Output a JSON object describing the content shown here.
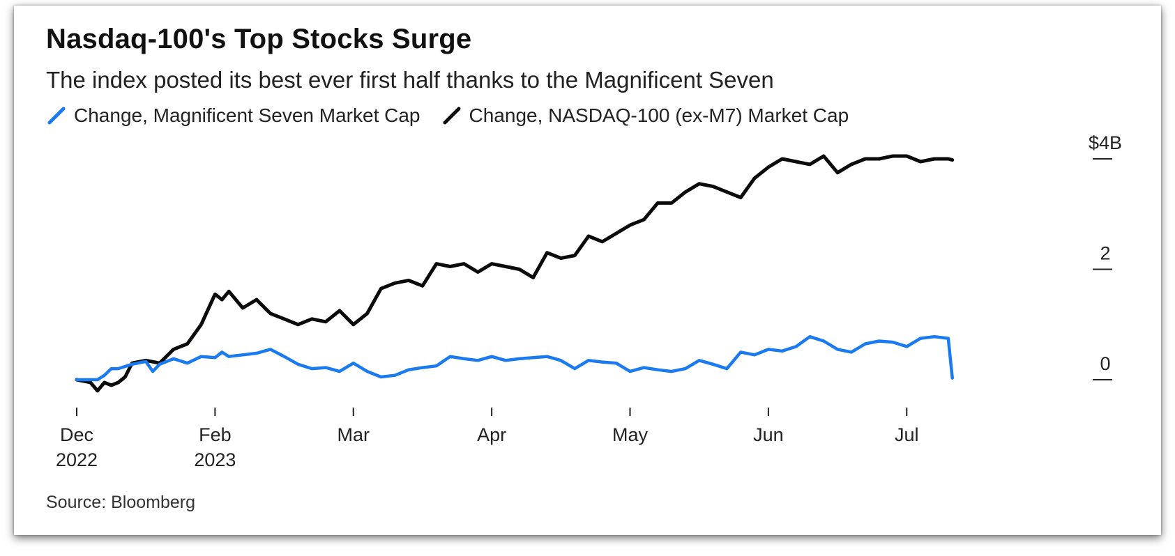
{
  "colors": {
    "m7": "#1a7af0",
    "nasdaq": "#0b0b0b",
    "text": "#222222"
  },
  "source": "Source: Bloomberg",
  "chart_data": {
    "type": "line",
    "title": "Nasdaq-100's Top Stocks Surge",
    "subtitle": "The index posted its best ever first half thanks to the Magnificent Seven",
    "xlabel": "",
    "ylabel": "",
    "ylim": [
      0,
      4
    ],
    "xlim": [
      0,
      7.4
    ],
    "y_ticks": [
      {
        "value": 4,
        "label": "$4B"
      },
      {
        "value": 2,
        "label": "2"
      },
      {
        "value": 0,
        "label": "0"
      }
    ],
    "x_ticks": [
      {
        "value": 0,
        "label": "Dec",
        "sublabel": "2022"
      },
      {
        "value": 1,
        "label": "Feb",
        "sublabel": "2023"
      },
      {
        "value": 2,
        "label": "Mar",
        "sublabel": ""
      },
      {
        "value": 3,
        "label": "Apr",
        "sublabel": ""
      },
      {
        "value": 4,
        "label": "May",
        "sublabel": ""
      },
      {
        "value": 5,
        "label": "Jun",
        "sublabel": ""
      },
      {
        "value": 6,
        "label": "Jul",
        "sublabel": ""
      }
    ],
    "series": [
      {
        "name": "Change, Magnificent Seven Market Cap",
        "color": "#1a7af0",
        "x": [
          0,
          0.15,
          0.2,
          0.25,
          0.3,
          0.4,
          0.5,
          0.55,
          0.6,
          0.7,
          0.8,
          0.9,
          1.0,
          1.05,
          1.1,
          1.2,
          1.3,
          1.4,
          1.5,
          1.6,
          1.7,
          1.8,
          1.9,
          2.0,
          2.1,
          2.2,
          2.3,
          2.4,
          2.5,
          2.6,
          2.7,
          2.8,
          2.9,
          3.0,
          3.1,
          3.2,
          3.3,
          3.4,
          3.5,
          3.6,
          3.7,
          3.8,
          3.9,
          4.0,
          4.1,
          4.2,
          4.3,
          4.4,
          4.5,
          4.6,
          4.7,
          4.8,
          4.9,
          5.0,
          5.1,
          5.2,
          5.3,
          5.4,
          5.5,
          5.6,
          5.7,
          5.8,
          5.9,
          6.0,
          6.1,
          6.2,
          6.3,
          6.33
        ],
        "values": [
          0.0,
          0.0,
          0.08,
          0.2,
          0.2,
          0.28,
          0.33,
          0.15,
          0.28,
          0.38,
          0.3,
          0.42,
          0.4,
          0.5,
          0.42,
          0.45,
          0.48,
          0.55,
          0.42,
          0.28,
          0.2,
          0.22,
          0.15,
          0.3,
          0.15,
          0.05,
          0.08,
          0.18,
          0.22,
          0.25,
          0.42,
          0.38,
          0.35,
          0.42,
          0.35,
          0.38,
          0.4,
          0.42,
          0.35,
          0.2,
          0.35,
          0.32,
          0.3,
          0.15,
          0.22,
          0.18,
          0.15,
          0.2,
          0.35,
          0.28,
          0.2,
          0.5,
          0.45,
          0.55,
          0.52,
          0.6,
          0.78,
          0.7,
          0.55,
          0.5,
          0.65,
          0.7,
          0.68,
          0.6,
          0.75,
          0.78,
          0.75,
          0.03
        ]
      },
      {
        "name": "Change, NASDAQ-100 (ex-M7) Market Cap",
        "color": "#0b0b0b",
        "x": [
          0,
          0.1,
          0.15,
          0.2,
          0.25,
          0.3,
          0.35,
          0.4,
          0.5,
          0.6,
          0.7,
          0.8,
          0.9,
          1.0,
          1.05,
          1.1,
          1.2,
          1.3,
          1.4,
          1.5,
          1.6,
          1.7,
          1.8,
          1.9,
          2.0,
          2.1,
          2.2,
          2.3,
          2.4,
          2.5,
          2.6,
          2.7,
          2.8,
          2.9,
          3.0,
          3.1,
          3.2,
          3.3,
          3.4,
          3.5,
          3.6,
          3.7,
          3.8,
          3.9,
          4.0,
          4.1,
          4.2,
          4.3,
          4.4,
          4.5,
          4.6,
          4.7,
          4.8,
          4.9,
          5.0,
          5.1,
          5.2,
          5.3,
          5.4,
          5.5,
          5.6,
          5.7,
          5.8,
          5.9,
          6.0,
          6.1,
          6.2,
          6.3,
          6.33
        ],
        "values": [
          0.0,
          -0.05,
          -0.2,
          -0.05,
          -0.1,
          -0.05,
          0.05,
          0.3,
          0.35,
          0.3,
          0.55,
          0.65,
          1.0,
          1.55,
          1.45,
          1.6,
          1.3,
          1.45,
          1.2,
          1.1,
          1.0,
          1.1,
          1.05,
          1.25,
          1.0,
          1.2,
          1.65,
          1.75,
          1.8,
          1.7,
          2.1,
          2.05,
          2.1,
          1.95,
          2.1,
          2.05,
          2.0,
          1.85,
          2.3,
          2.2,
          2.25,
          2.6,
          2.5,
          2.65,
          2.8,
          2.9,
          3.2,
          3.2,
          3.4,
          3.55,
          3.5,
          3.4,
          3.3,
          3.65,
          3.85,
          4.0,
          3.95,
          3.9,
          4.05,
          3.75,
          3.9,
          4.0,
          4.0,
          4.05,
          4.05,
          3.95,
          4.0,
          4.0,
          3.98
        ]
      }
    ]
  }
}
